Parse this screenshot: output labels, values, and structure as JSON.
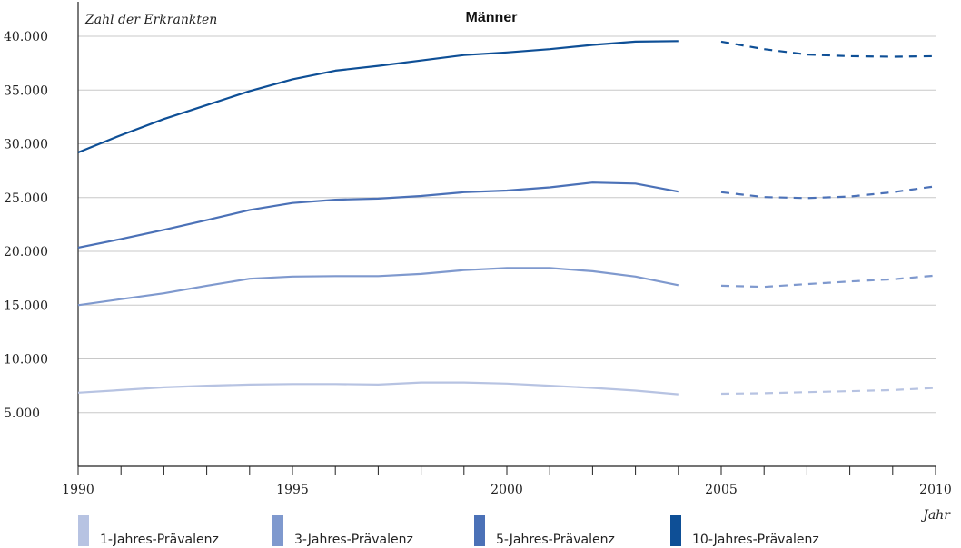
{
  "chart_data": {
    "type": "line",
    "title": "Männer",
    "ylabel": "Zahl der Erkrankten",
    "xlabel": "Jahr",
    "xlim": [
      1990,
      2010
    ],
    "ylim": [
      0,
      40000
    ],
    "y_ticks": [
      5000,
      10000,
      15000,
      20000,
      25000,
      30000,
      35000,
      40000
    ],
    "y_tick_labels": [
      "5.000",
      "10.000",
      "15.000",
      "20.000",
      "25.000",
      "30.000",
      "35.000",
      "40.000"
    ],
    "x_ticks": [
      1990,
      1995,
      2000,
      2005,
      2010
    ],
    "x_tick_labels": [
      "1990",
      "1995",
      "2000",
      "2005",
      "2010"
    ],
    "grid": "horizontal",
    "legend_position": "bottom",
    "observed_until": 2004,
    "projection_style": "dashed",
    "x": [
      1990,
      1991,
      1992,
      1993,
      1994,
      1995,
      1996,
      1997,
      1998,
      1999,
      2000,
      2001,
      2002,
      2003,
      2004,
      2005,
      2006,
      2007,
      2008,
      2009,
      2010
    ],
    "series": [
      {
        "name": "1-Jahres-Prävalenz",
        "color": "#b7c3e2",
        "values": [
          6850,
          7100,
          7350,
          7500,
          7600,
          7650,
          7650,
          7600,
          7800,
          7800,
          7700,
          7500,
          7300,
          7050,
          6700,
          6750,
          6800,
          6900,
          7000,
          7100,
          7300
        ]
      },
      {
        "name": "3-Jahres-Prävalenz",
        "color": "#7f99ce",
        "values": [
          15000,
          15550,
          16100,
          16800,
          17450,
          17650,
          17700,
          17700,
          17900,
          18250,
          18450,
          18450,
          18150,
          17650,
          16850,
          16800,
          16700,
          16950,
          17200,
          17400,
          17750
        ]
      },
      {
        "name": "5-Jahres-Prävalenz",
        "color": "#4b71b7",
        "values": [
          20350,
          21150,
          22000,
          22900,
          23850,
          24500,
          24800,
          24900,
          25150,
          25500,
          25650,
          25950,
          26400,
          26300,
          25550,
          25500,
          25050,
          24950,
          25100,
          25500,
          26050
        ]
      },
      {
        "name": "10-Jahres-Prävalenz",
        "color": "#0e4f96",
        "values": [
          29200,
          30800,
          32300,
          33600,
          34900,
          36000,
          36800,
          37250,
          37750,
          38250,
          38500,
          38800,
          39200,
          39500,
          39550,
          39500,
          38800,
          38300,
          38150,
          38100,
          38150
        ]
      }
    ]
  }
}
